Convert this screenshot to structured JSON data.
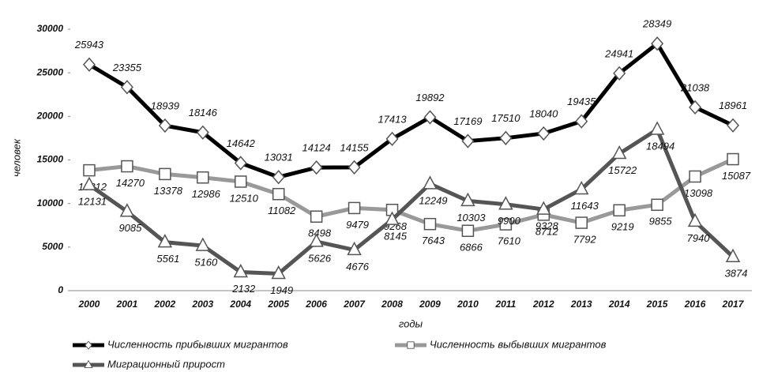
{
  "chart_data": {
    "type": "line",
    "categories": [
      "2000",
      "2001",
      "2002",
      "2003",
      "2004",
      "2005",
      "2006",
      "2007",
      "2008",
      "2009",
      "2010",
      "2011",
      "2012",
      "2013",
      "2014",
      "2015",
      "2016",
      "2017"
    ],
    "series": [
      {
        "name": "Численность прибывших мигрантов",
        "color": "#000000",
        "marker": "diamond",
        "values": [
          25943,
          23355,
          18939,
          18146,
          14642,
          13031,
          14124,
          14155,
          17413,
          19892,
          17169,
          17510,
          18040,
          19435,
          24941,
          28349,
          21038,
          18961
        ]
      },
      {
        "name": "Численность выбывших мигрантов",
        "color": "#999999",
        "marker": "square",
        "values": [
          13812,
          14270,
          13378,
          12986,
          12510,
          11082,
          8498,
          9479,
          9268,
          7643,
          6866,
          7610,
          8712,
          7792,
          9219,
          9855,
          13098,
          15087
        ]
      },
      {
        "name": "Миграционный прирост",
        "color": "#555555",
        "marker": "triangle",
        "values": [
          12131,
          9085,
          5561,
          5160,
          2132,
          1949,
          5626,
          4676,
          8145,
          12249,
          10303,
          9900,
          9328,
          11643,
          15722,
          18494,
          7940,
          3874
        ]
      }
    ],
    "ylim": [
      0,
      30000
    ],
    "yticks": [
      0,
      5000,
      10000,
      15000,
      20000,
      25000,
      30000
    ],
    "xlabel": "годы",
    "ylabel": "человек",
    "grid": false
  }
}
